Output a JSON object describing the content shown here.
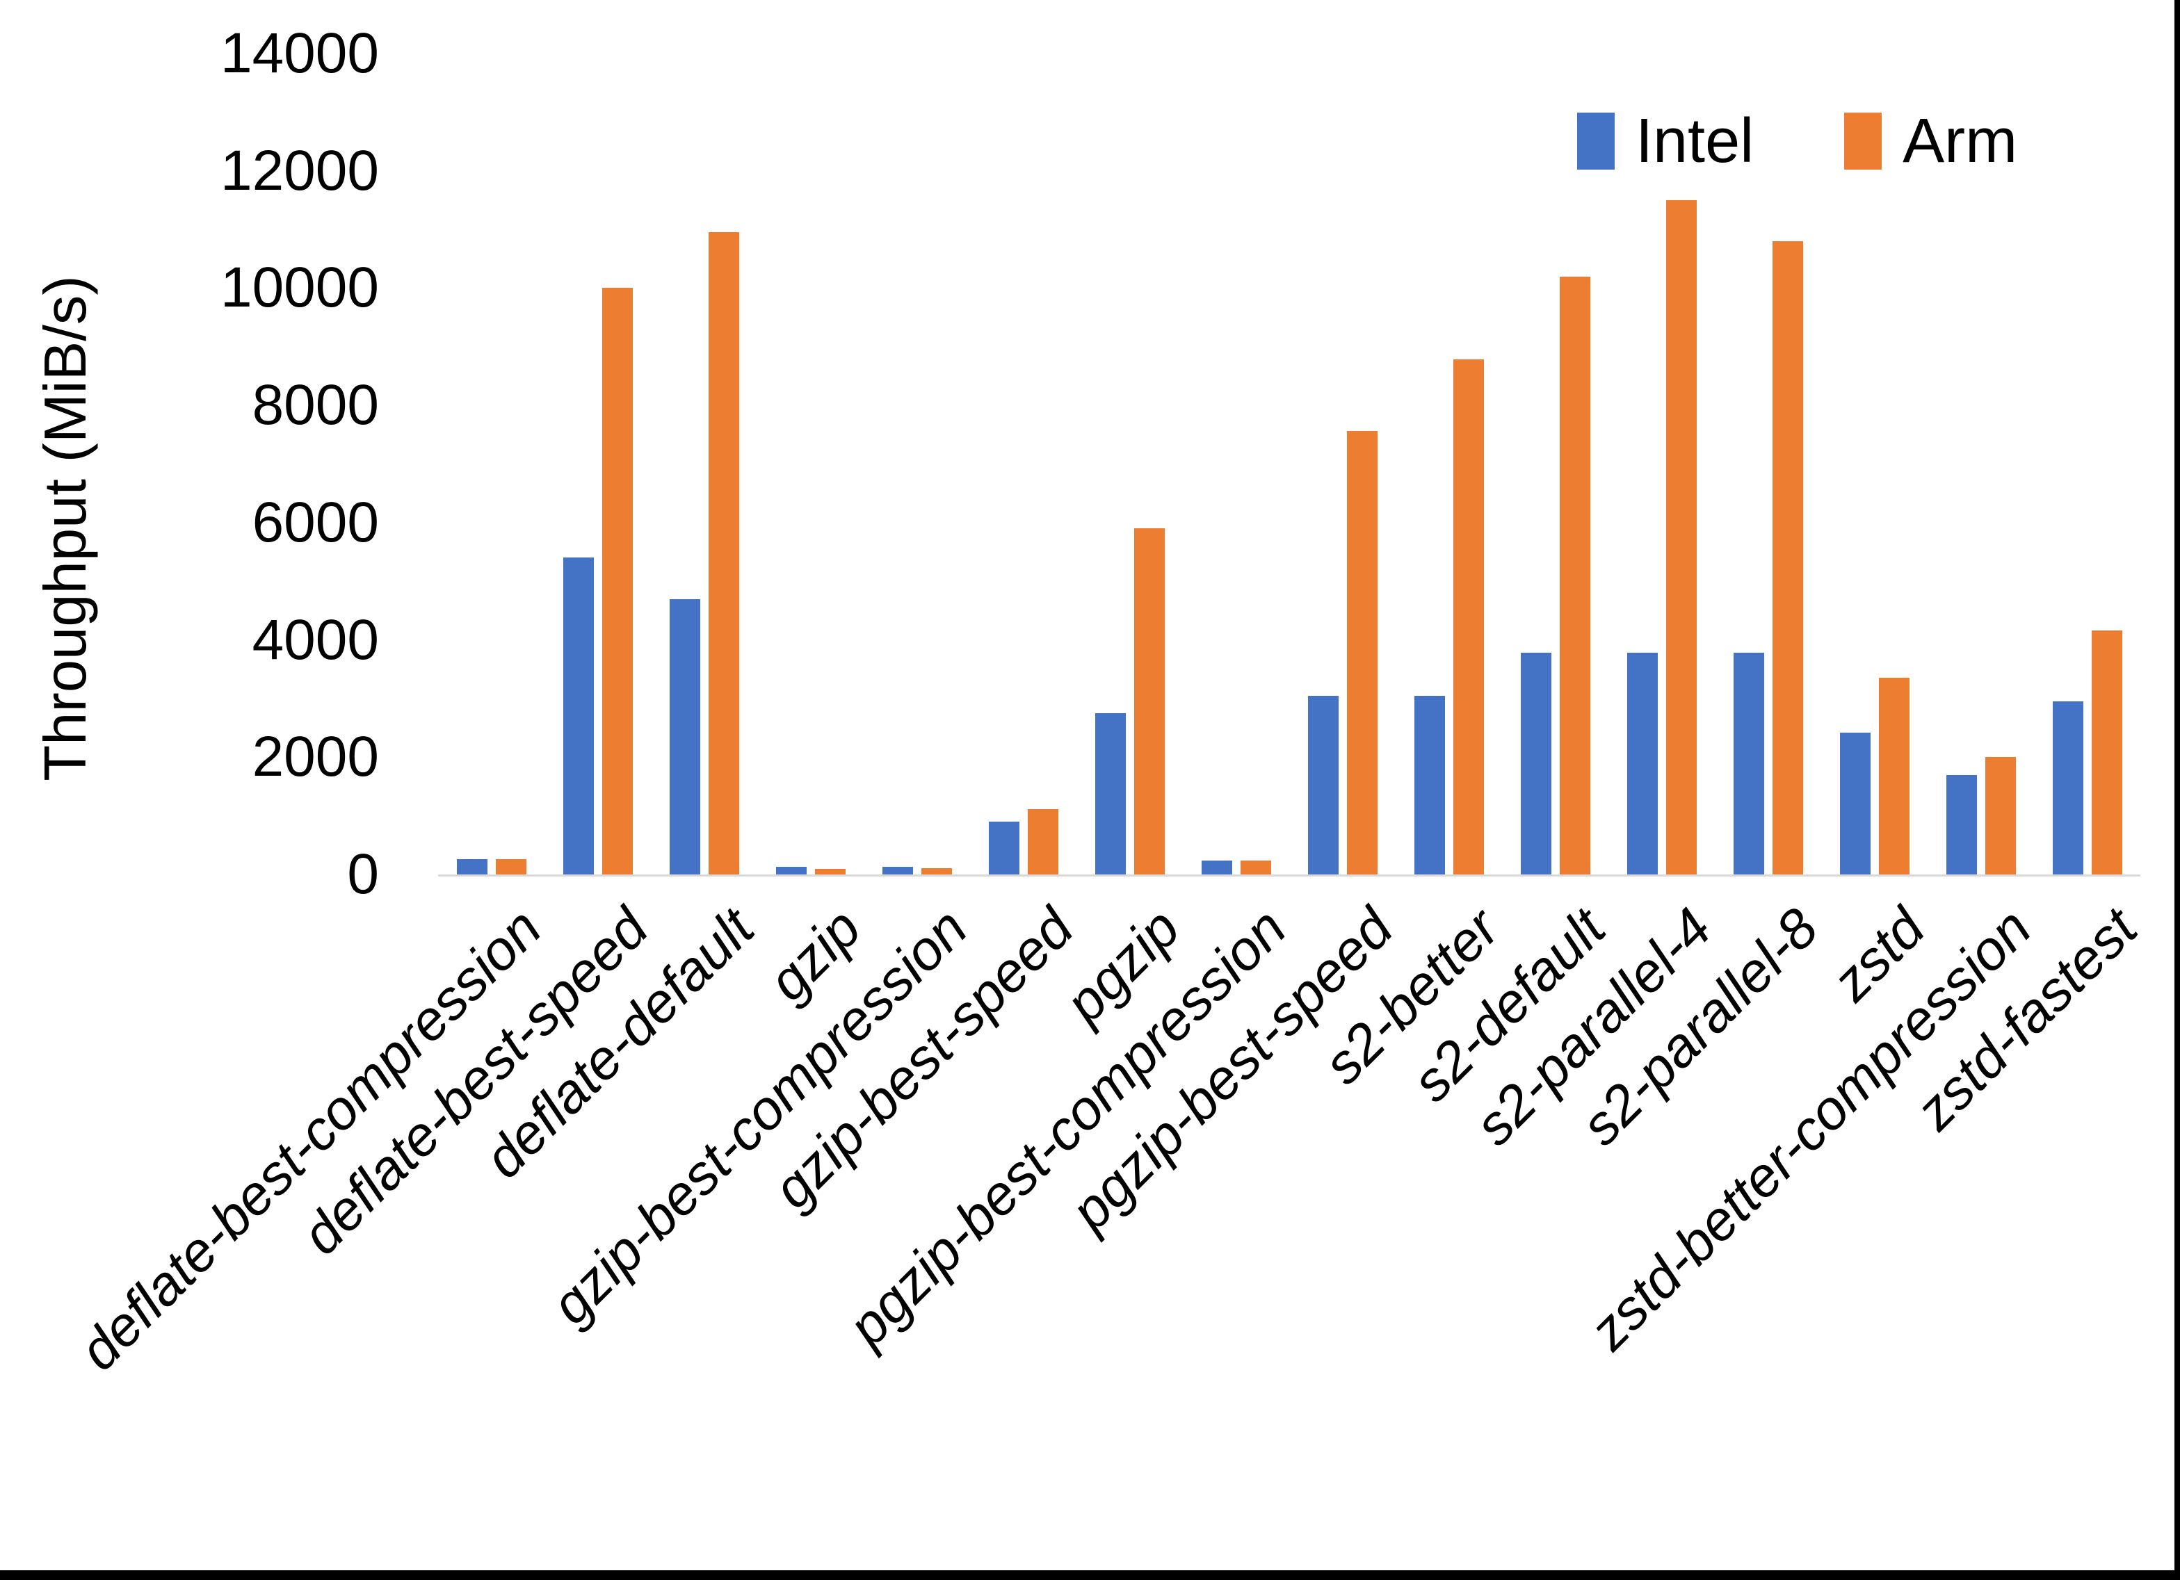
{
  "chart_data": {
    "type": "bar",
    "title": "",
    "ylabel": "Throughput (MiB/s)",
    "xlabel": "",
    "ylim": [
      0,
      14000
    ],
    "yticks": [
      0,
      2000,
      4000,
      6000,
      8000,
      10000,
      12000,
      14000
    ],
    "grid": false,
    "legend_position": "top-right",
    "categories": [
      "deflate-best-compression",
      "deflate-best-speed",
      "deflate-default",
      "gzip",
      "gzip-best-compression",
      "gzip-best-speed",
      "pgzip",
      "pgzip-best-compression",
      "pgzip-best-speed",
      "s2-better",
      "s2-default",
      "s2-parallel-4",
      "s2-parallel-8",
      "zstd",
      "zstd-better-compression",
      "zstd-fastest"
    ],
    "series": [
      {
        "name": "Intel",
        "color": "#4472C4",
        "values": [
          260,
          5400,
          4700,
          130,
          130,
          900,
          2750,
          240,
          3050,
          3050,
          3780,
          3780,
          3780,
          2420,
          1700,
          2950
        ]
      },
      {
        "name": "Arm",
        "color": "#ED7D31",
        "values": [
          255,
          10000,
          10950,
          100,
          110,
          1110,
          5900,
          235,
          7560,
          8780,
          10200,
          11500,
          10800,
          3350,
          2000,
          4160
        ]
      }
    ],
    "axis_color": "#D9D9D9",
    "text_color": "#000000"
  },
  "frame": {
    "border_color": "#000000"
  }
}
